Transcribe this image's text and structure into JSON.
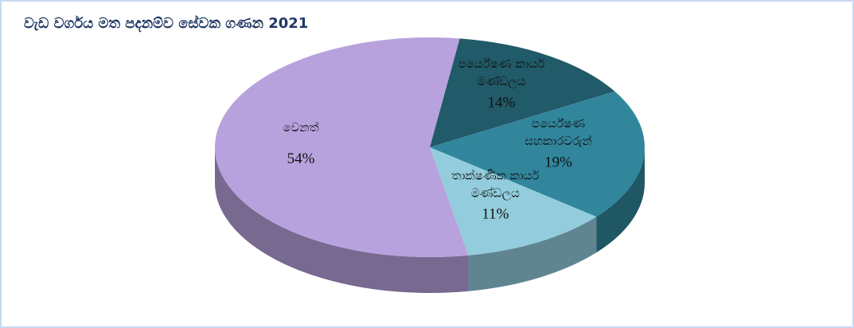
{
  "chart_data": {
    "type": "pie3d",
    "title": "වැඩ වර්ගය මත පදනම්ව සේවක ගණන 2021",
    "categories": [
      "පර්යේෂණ කාර්ය මණ්ඩලය",
      "පර්යේෂණ සහකාරවරුන්",
      "තාක්ෂණික කාර්ය මණ්ඩලය",
      "වෙනත්"
    ],
    "values": [
      14,
      19,
      11,
      54
    ],
    "value_labels": [
      "14%",
      "19%",
      "11%",
      "54%"
    ],
    "colors": [
      "#215a68",
      "#31869c",
      "#93cddd",
      "#b7a2dd"
    ]
  }
}
